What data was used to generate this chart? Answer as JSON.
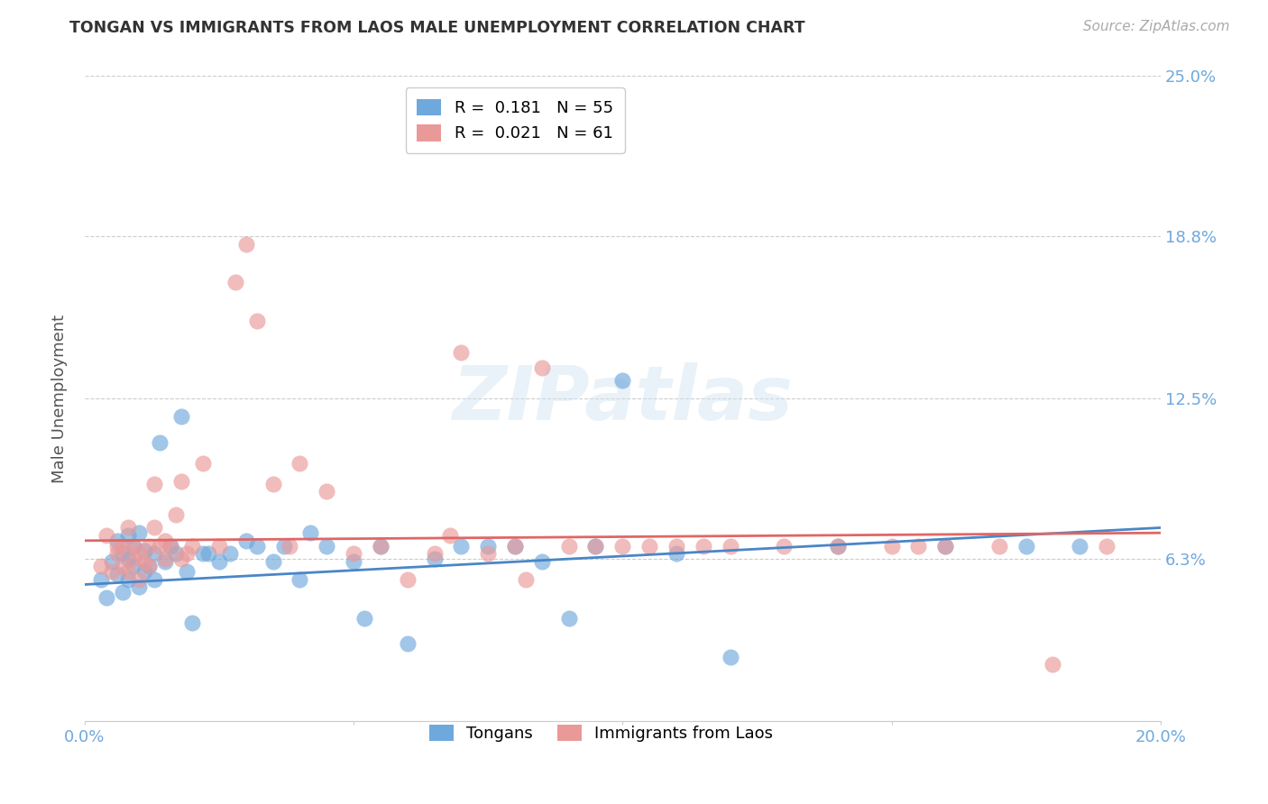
{
  "title": "TONGAN VS IMMIGRANTS FROM LAOS MALE UNEMPLOYMENT CORRELATION CHART",
  "source": "Source: ZipAtlas.com",
  "ylabel": "Male Unemployment",
  "xlim": [
    0.0,
    0.2
  ],
  "ylim": [
    0.0,
    0.25
  ],
  "ytick_vals": [
    0.0,
    0.063,
    0.125,
    0.188,
    0.25
  ],
  "ytick_labels_right": [
    "",
    "6.3%",
    "12.5%",
    "18.8%",
    "25.0%"
  ],
  "xtick_vals": [
    0.0,
    0.05,
    0.1,
    0.15,
    0.2
  ],
  "xtick_labels": [
    "0.0%",
    "",
    "",
    "",
    "20.0%"
  ],
  "legend_r1": "R =  0.181   N = 55",
  "legend_r2": "R =  0.021   N = 61",
  "legend_label_tongans": "Tongans",
  "legend_label_laos": "Immigrants from Laos",
  "blue_color": "#6fa8dc",
  "pink_color": "#ea9999",
  "blue_line_color": "#4a86c8",
  "pink_line_color": "#e06666",
  "axis_color": "#6fa8dc",
  "grid_color": "#cccccc",
  "background_color": "#ffffff",
  "watermark_text": "ZIPatlas",
  "blue_scatter_x": [
    0.003,
    0.004,
    0.005,
    0.006,
    0.006,
    0.007,
    0.007,
    0.008,
    0.008,
    0.008,
    0.009,
    0.009,
    0.01,
    0.01,
    0.011,
    0.011,
    0.012,
    0.013,
    0.013,
    0.014,
    0.015,
    0.016,
    0.017,
    0.018,
    0.019,
    0.02,
    0.022,
    0.023,
    0.025,
    0.027,
    0.03,
    0.032,
    0.035,
    0.037,
    0.04,
    0.042,
    0.045,
    0.05,
    0.052,
    0.055,
    0.06,
    0.065,
    0.07,
    0.075,
    0.08,
    0.085,
    0.09,
    0.095,
    0.1,
    0.11,
    0.12,
    0.14,
    0.16,
    0.175,
    0.185
  ],
  "blue_scatter_y": [
    0.055,
    0.048,
    0.062,
    0.057,
    0.07,
    0.05,
    0.065,
    0.055,
    0.063,
    0.072,
    0.06,
    0.068,
    0.052,
    0.073,
    0.058,
    0.066,
    0.06,
    0.055,
    0.065,
    0.108,
    0.062,
    0.068,
    0.065,
    0.118,
    0.058,
    0.038,
    0.065,
    0.065,
    0.062,
    0.065,
    0.07,
    0.068,
    0.062,
    0.068,
    0.055,
    0.073,
    0.068,
    0.062,
    0.04,
    0.068,
    0.03,
    0.063,
    0.068,
    0.068,
    0.068,
    0.062,
    0.04,
    0.068,
    0.132,
    0.065,
    0.025,
    0.068,
    0.068,
    0.068,
    0.068
  ],
  "pink_scatter_x": [
    0.003,
    0.004,
    0.005,
    0.006,
    0.006,
    0.007,
    0.007,
    0.008,
    0.008,
    0.009,
    0.009,
    0.01,
    0.01,
    0.011,
    0.012,
    0.012,
    0.013,
    0.013,
    0.014,
    0.015,
    0.015,
    0.016,
    0.017,
    0.018,
    0.018,
    0.019,
    0.02,
    0.022,
    0.025,
    0.028,
    0.03,
    0.032,
    0.035,
    0.038,
    0.04,
    0.045,
    0.05,
    0.055,
    0.06,
    0.065,
    0.068,
    0.07,
    0.075,
    0.08,
    0.082,
    0.085,
    0.09,
    0.095,
    0.1,
    0.105,
    0.11,
    0.115,
    0.12,
    0.13,
    0.14,
    0.15,
    0.155,
    0.16,
    0.17,
    0.18,
    0.19
  ],
  "pink_scatter_y": [
    0.06,
    0.072,
    0.058,
    0.065,
    0.068,
    0.06,
    0.068,
    0.075,
    0.058,
    0.063,
    0.068,
    0.055,
    0.065,
    0.062,
    0.06,
    0.068,
    0.075,
    0.092,
    0.068,
    0.063,
    0.07,
    0.068,
    0.08,
    0.093,
    0.063,
    0.065,
    0.068,
    0.1,
    0.068,
    0.17,
    0.185,
    0.155,
    0.092,
    0.068,
    0.1,
    0.089,
    0.065,
    0.068,
    0.055,
    0.065,
    0.072,
    0.143,
    0.065,
    0.068,
    0.055,
    0.137,
    0.068,
    0.068,
    0.068,
    0.068,
    0.068,
    0.068,
    0.068,
    0.068,
    0.068,
    0.068,
    0.068,
    0.068,
    0.068,
    0.022,
    0.068
  ],
  "blue_line_y_start": 0.053,
  "blue_line_y_end": 0.075,
  "pink_line_y_start": 0.07,
  "pink_line_y_end": 0.073
}
